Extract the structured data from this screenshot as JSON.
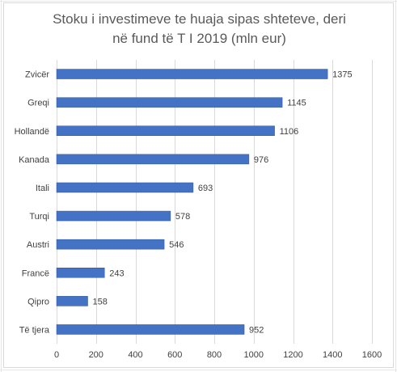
{
  "chart_data": {
    "type": "bar",
    "orientation": "horizontal",
    "title_lines": [
      "Stoku i investimeve te huaja sipas shteteve, deri",
      "në fund të T I 2019 (mln eur)"
    ],
    "categories": [
      "Zvicër",
      "Greqi",
      "Hollandë",
      "Kanada",
      "Itali",
      "Turqi",
      "Austri",
      "Francë",
      "Qipro",
      "Të tjera"
    ],
    "values": [
      1375,
      1145,
      1106,
      976,
      693,
      578,
      546,
      243,
      158,
      952
    ],
    "data_labels": [
      "1375",
      "1145",
      "1106",
      "976",
      "693",
      "578",
      "546",
      "243",
      "158",
      "952"
    ],
    "xlim": [
      0,
      1600
    ],
    "x_ticks": [
      "0",
      "200",
      "400",
      "600",
      "800",
      "1000",
      "1200",
      "1400",
      "1600"
    ],
    "xlabel": "",
    "ylabel": "",
    "grid": "vertical",
    "legend": "none",
    "colors": {
      "bar": "#4472c4",
      "bar_edge": "#2f5597",
      "gridline": "#d9d9d9",
      "text": "#404040",
      "title": "#595959"
    }
  }
}
